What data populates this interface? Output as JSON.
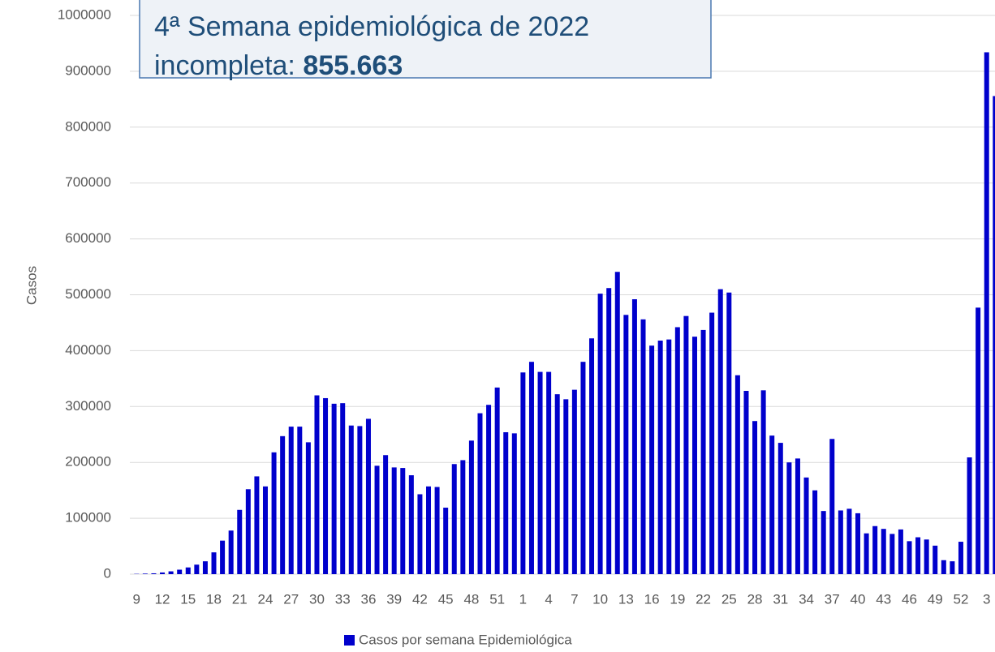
{
  "chart_data": {
    "type": "bar",
    "annotation": {
      "line1": "4ª Semana epidemiológica de 2022",
      "line2": "incompleta:",
      "value": "855.663"
    },
    "y_label": "Casos",
    "categories": [
      "9",
      null,
      null,
      "12",
      null,
      null,
      "15",
      null,
      null,
      "18",
      null,
      null,
      "21",
      null,
      null,
      "24",
      null,
      null,
      "27",
      null,
      null,
      "30",
      null,
      null,
      "33",
      null,
      null,
      "36",
      null,
      null,
      "39",
      null,
      null,
      "42",
      null,
      null,
      "45",
      null,
      null,
      "48",
      null,
      null,
      "51",
      null,
      null,
      "1",
      null,
      null,
      "4",
      null,
      null,
      "7",
      null,
      null,
      "10",
      null,
      null,
      "13",
      null,
      null,
      "16",
      null,
      null,
      "19",
      null,
      null,
      "22",
      null,
      null,
      "25",
      null,
      null,
      "28",
      null,
      null,
      "31",
      null,
      null,
      "34",
      null,
      null,
      "37",
      null,
      null,
      "40",
      null,
      null,
      "43",
      null,
      null,
      "46",
      null,
      null,
      "49",
      null,
      null,
      "52",
      null,
      null,
      "3",
      null
    ],
    "series": [
      {
        "name": "Casos por semana Epidemiológica",
        "color": "#0000cc",
        "values": [
          500,
          1000,
          1500,
          3000,
          5000,
          8000,
          12000,
          17000,
          23000,
          39000,
          60000,
          78000,
          115000,
          152000,
          175000,
          157000,
          218000,
          247000,
          264000,
          264000,
          236000,
          320000,
          315000,
          305000,
          306000,
          266000,
          265000,
          278000,
          194000,
          213000,
          191000,
          190000,
          177000,
          143000,
          157000,
          156000,
          119000,
          197000,
          204000,
          239000,
          288000,
          303000,
          334000,
          254000,
          252000,
          361000,
          380000,
          362000,
          362000,
          322000,
          313000,
          330000,
          380000,
          422000,
          502000,
          512000,
          541000,
          464000,
          492000,
          456000,
          409000,
          418000,
          420000,
          442000,
          462000,
          425000,
          437000,
          468000,
          510000,
          504000,
          356000,
          328000,
          274000,
          329000,
          248000,
          235000,
          200000,
          207000,
          173000,
          150000,
          113000,
          242000,
          114000,
          117000,
          109000,
          73000,
          86000,
          81000,
          72000,
          80000,
          59000,
          66000,
          62000,
          51000,
          25000,
          23000,
          58000,
          209000,
          477000,
          934000,
          855663
        ]
      }
    ],
    "ylim": [
      0,
      1000000
    ],
    "yticks": [
      0,
      100000,
      200000,
      300000,
      400000,
      500000,
      600000,
      700000,
      800000,
      900000,
      1000000
    ],
    "grid": true
  }
}
